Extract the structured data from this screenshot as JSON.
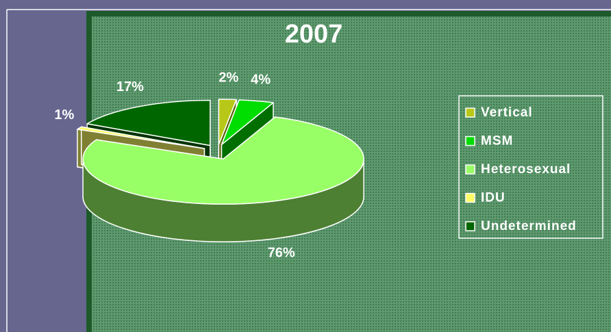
{
  "chart_data": {
    "type": "pie",
    "title": "2007",
    "categories": [
      "Vertical",
      "MSM",
      "Heterosexual",
      "IDU",
      "Undetermined"
    ],
    "values": [
      2,
      4,
      76,
      1,
      17
    ],
    "value_labels": [
      "2%",
      "4%",
      "76%",
      "1%",
      "17%"
    ],
    "colors": [
      "#b8c818",
      "#00dd00",
      "#99ff66",
      "#ffff66",
      "#006600"
    ],
    "legend": "right"
  }
}
